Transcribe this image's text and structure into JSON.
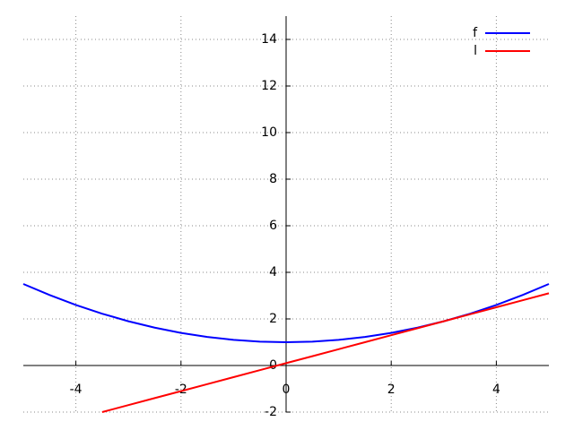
{
  "chart_data": {
    "type": "line",
    "x": [
      -5,
      -4.5,
      -4,
      -3.5,
      -3,
      -2.5,
      -2,
      -1.5,
      -1,
      -0.5,
      0,
      0.5,
      1,
      1.5,
      2,
      2.5,
      3,
      3.5,
      4,
      4.5,
      5
    ],
    "series": [
      {
        "name": "f",
        "color": "#0000ff",
        "values": [
          3.5,
          3.025,
          2.6,
          2.225,
          1.9,
          1.625,
          1.4,
          1.225,
          1.1,
          1.025,
          1,
          1.025,
          1.1,
          1.225,
          1.4,
          1.625,
          1.9,
          2.225,
          2.6,
          3.025,
          3.5
        ]
      },
      {
        "name": "l",
        "color": "#ff0000",
        "values": [
          null,
          null,
          null,
          -2,
          -1.7,
          -1.4,
          -1.1,
          -0.8,
          -0.5,
          -0.2,
          0.1,
          0.4,
          0.7,
          1.0,
          1.3,
          1.6,
          1.9,
          2.2,
          2.5,
          2.8,
          3.1
        ]
      }
    ],
    "xlim": [
      -5,
      5
    ],
    "ylim": [
      -2,
      15
    ],
    "xticks": [
      -4,
      -2,
      0,
      2,
      4
    ],
    "yticks": [
      -2,
      0,
      2,
      4,
      6,
      8,
      10,
      12,
      14
    ],
    "grid": true,
    "legend": "upper right"
  }
}
